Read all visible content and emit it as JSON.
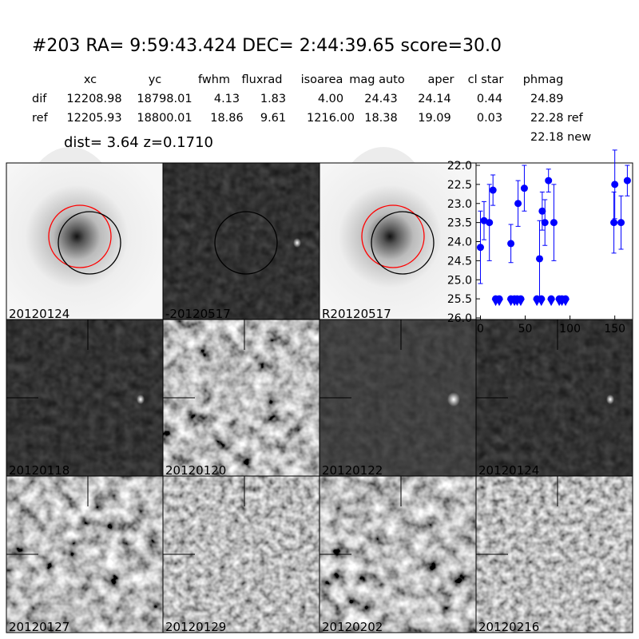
{
  "header": {
    "title": "#203   RA= 9:59:43.424 DEC= 2:44:39.65      score=30.0",
    "dist": "dist=  3.64      z=0.1710"
  },
  "table": {
    "columns": [
      "xc",
      "yc",
      "fwhm",
      "fluxrad",
      "isoarea",
      "mag auto",
      "aper",
      "cl star",
      "phmag"
    ],
    "rows": [
      [
        "dif",
        "12208.98",
        "18798.01",
        "4.13",
        "1.83",
        "4.00",
        "24.43",
        "24.14",
        "0.44",
        "24.89"
      ],
      [
        "ref",
        "12205.93",
        "18800.01",
        "18.86",
        "9.61",
        "1216.00",
        "18.38",
        "19.09",
        "0.03",
        "22.28 ref"
      ]
    ],
    "extra": "22.18 new"
  },
  "panels": [
    {
      "label": "20120124",
      "label_color": "#000000"
    },
    {
      "label": "-20120517",
      "label_color": "#000000"
    },
    {
      "label": "R20120517",
      "label_color": "#000000"
    },
    {
      "label": "20120118",
      "label_color": "#000000"
    },
    {
      "label": "20120120",
      "label_color": "#000000"
    },
    {
      "label": "20120122",
      "label_color": "#000000"
    },
    {
      "label": "20120124",
      "label_color": "#ff0000"
    },
    {
      "label": "20120127",
      "label_color": "#000000"
    },
    {
      "label": "20120129",
      "label_color": "#000000"
    },
    {
      "label": "20120202",
      "label_color": "#000000"
    },
    {
      "label": "20120216",
      "label_color": "#000000"
    }
  ],
  "chart_data": {
    "type": "scatter",
    "xlim": [
      -4,
      169
    ],
    "ylim": [
      22,
      26
    ],
    "invert_y": true,
    "xticks": [
      0,
      50,
      100,
      150
    ],
    "yticks": [
      {
        "value": 22,
        "label": "22.0"
      },
      22.5,
      {
        "value": 23,
        "label": "23.0"
      },
      23.5,
      {
        "value": 24,
        "label": "24.0"
      },
      24.5,
      {
        "value": 25,
        "label": "25.0"
      },
      25.5,
      {
        "value": 26,
        "label": "26.0"
      }
    ],
    "series": [
      {
        "color": "#0000ff",
        "marker": "o",
        "x": [
          0,
          4,
          10,
          14,
          34,
          42,
          49,
          66,
          69,
          72,
          76,
          82,
          149,
          150,
          157,
          164
        ],
        "values": [
          24.15,
          23.45,
          23.5,
          22.65,
          24.05,
          23.0,
          22.6,
          24.45,
          23.2,
          23.5,
          22.4,
          23.5,
          23.5,
          22.5,
          23.5,
          22.4
        ],
        "errors": [
          0.95,
          0.5,
          1.0,
          0.4,
          0.5,
          0.6,
          0.6,
          1.0,
          0.5,
          0.6,
          0.3,
          1.0,
          0.8,
          0.9,
          0.7,
          0.4
        ]
      },
      {
        "color": "#0000ff",
        "marker": "v",
        "x": [
          17,
          21,
          34,
          38,
          41,
          45,
          63,
          68,
          79,
          88,
          91,
          95
        ],
        "values": [
          25.5,
          25.5,
          25.5,
          25.5,
          25.5,
          25.5,
          25.5,
          25.5,
          25.5,
          25.5,
          25.5,
          25.5
        ]
      }
    ]
  }
}
